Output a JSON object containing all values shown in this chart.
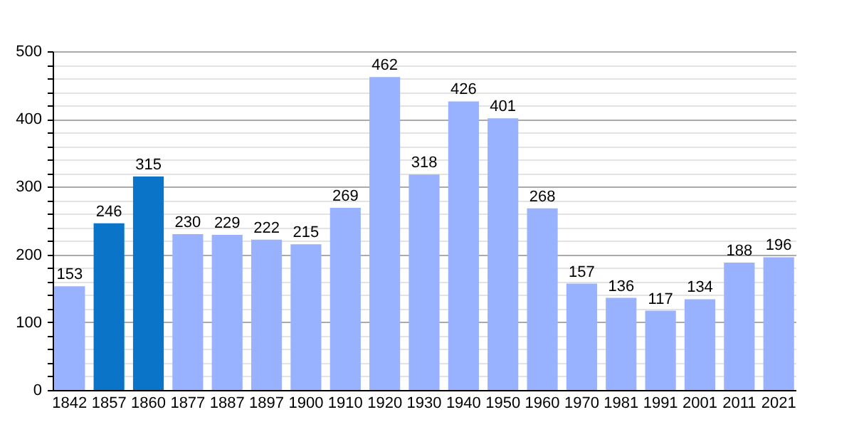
{
  "chart_data": {
    "type": "bar",
    "categories": [
      "1842",
      "1857",
      "1860",
      "1877",
      "1887",
      "1897",
      "1900",
      "1910",
      "1920",
      "1930",
      "1940",
      "1950",
      "1960",
      "1970",
      "1981",
      "1991",
      "2001",
      "2011",
      "2021"
    ],
    "values": [
      153,
      246,
      315,
      230,
      229,
      222,
      215,
      269,
      462,
      318,
      426,
      401,
      268,
      157,
      136,
      117,
      134,
      188,
      196
    ],
    "colors": [
      "#99b2ff",
      "#0a74c8",
      "#0a74c8",
      "#99b2ff",
      "#99b2ff",
      "#99b2ff",
      "#99b2ff",
      "#99b2ff",
      "#99b2ff",
      "#99b2ff",
      "#99b2ff",
      "#99b2ff",
      "#99b2ff",
      "#99b2ff",
      "#99b2ff",
      "#99b2ff",
      "#99b2ff",
      "#99b2ff",
      "#99b2ff"
    ],
    "ylim": [
      0,
      500
    ],
    "yticks": [
      0,
      {
        "value": 20,
        "label": null
      },
      {
        "value": 40,
        "label": null
      },
      {
        "value": 60,
        "label": null
      },
      {
        "value": 80,
        "label": null
      },
      100,
      {
        "value": 120,
        "label": null
      },
      {
        "value": 140,
        "label": null
      },
      {
        "value": 160,
        "label": null
      },
      {
        "value": 180,
        "label": null
      },
      200,
      {
        "value": 220,
        "label": null
      },
      {
        "value": 240,
        "label": null
      },
      {
        "value": 260,
        "label": null
      },
      {
        "value": 280,
        "label": null
      },
      300,
      {
        "value": 320,
        "label": null
      },
      {
        "value": 340,
        "label": null
      },
      {
        "value": 360,
        "label": null
      },
      {
        "value": 380,
        "label": null
      },
      400,
      {
        "value": 420,
        "label": null
      },
      {
        "value": 440,
        "label": null
      },
      {
        "value": 460,
        "label": null
      },
      {
        "value": 480,
        "label": null
      },
      500
    ],
    "grid": true,
    "data_labels": true
  }
}
